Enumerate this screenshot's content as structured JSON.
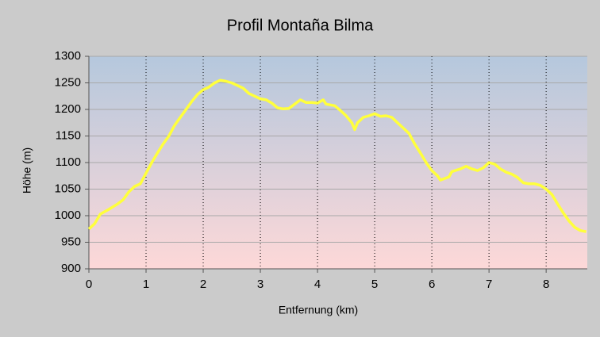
{
  "chart_data": {
    "type": "line",
    "title": "Profil Montaña Bilma",
    "x_label": "Entfernung (km)",
    "y_label": "Höhe (m)",
    "xlim": [
      0,
      8.72
    ],
    "ylim": [
      900,
      1300
    ],
    "xticks": [
      0,
      1,
      2,
      3,
      4,
      5,
      6,
      7,
      8
    ],
    "yticks": [
      900,
      950,
      1000,
      1050,
      1100,
      1150,
      1200,
      1250,
      1300
    ],
    "grid": true,
    "series": [
      {
        "color": "#ffff3c",
        "x": [
          0,
          0.1,
          0.2,
          0.35,
          0.5,
          0.6,
          0.7,
          0.8,
          0.9,
          1.0,
          1.1,
          1.2,
          1.3,
          1.4,
          1.5,
          1.6,
          1.7,
          1.8,
          1.9,
          2.0,
          2.1,
          2.2,
          2.3,
          2.4,
          2.5,
          2.6,
          2.7,
          2.8,
          2.9,
          3.0,
          3.1,
          3.2,
          3.3,
          3.4,
          3.5,
          3.6,
          3.7,
          3.8,
          3.9,
          4.0,
          4.1,
          4.15,
          4.3,
          4.4,
          4.5,
          4.6,
          4.65,
          4.7,
          4.8,
          4.9,
          5.0,
          5.1,
          5.2,
          5.3,
          5.4,
          5.5,
          5.6,
          5.7,
          5.8,
          5.9,
          6.0,
          6.1,
          6.15,
          6.3,
          6.35,
          6.5,
          6.6,
          6.7,
          6.8,
          6.9,
          7.0,
          7.1,
          7.2,
          7.3,
          7.4,
          7.5,
          7.6,
          7.7,
          7.8,
          7.9,
          8.0,
          8.1,
          8.2,
          8.3,
          8.4,
          8.5,
          8.6,
          8.7
        ],
        "values": [
          975,
          985,
          1003,
          1012,
          1022,
          1030,
          1045,
          1055,
          1060,
          1080,
          1100,
          1118,
          1135,
          1150,
          1170,
          1185,
          1200,
          1215,
          1228,
          1237,
          1242,
          1250,
          1255,
          1253,
          1250,
          1245,
          1240,
          1230,
          1225,
          1220,
          1218,
          1212,
          1203,
          1201,
          1202,
          1210,
          1218,
          1213,
          1213,
          1212,
          1218,
          1210,
          1207,
          1198,
          1188,
          1175,
          1162,
          1175,
          1185,
          1188,
          1192,
          1187,
          1188,
          1185,
          1175,
          1165,
          1155,
          1135,
          1118,
          1100,
          1085,
          1075,
          1067,
          1073,
          1083,
          1088,
          1093,
          1088,
          1085,
          1090,
          1100,
          1097,
          1088,
          1082,
          1078,
          1072,
          1062,
          1060,
          1060,
          1057,
          1050,
          1040,
          1022,
          1005,
          990,
          978,
          972,
          970
        ]
      }
    ]
  }
}
